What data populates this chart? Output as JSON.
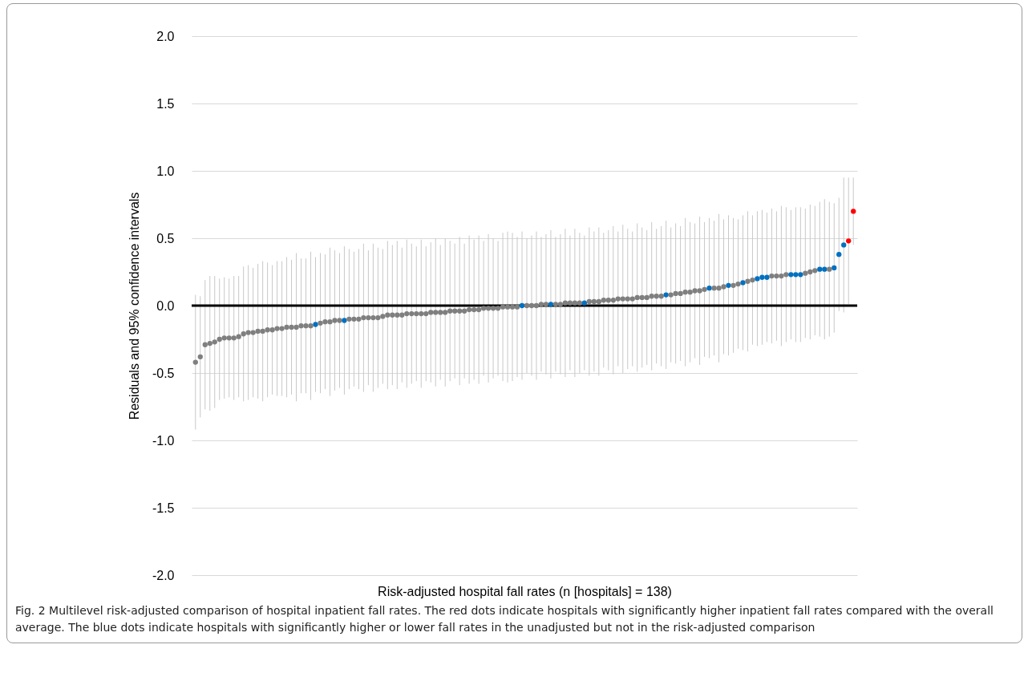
{
  "chart_data": {
    "type": "scatter",
    "xlabel": "Risk-adjusted hospital fall rates (n [hospitals] = 138)",
    "ylabel": "Residuals and 95% confidence intervals",
    "categories": [
      null,
      null,
      null,
      null,
      null,
      null,
      null,
      null,
      null,
      null,
      null,
      null,
      null,
      null,
      null,
      null,
      null,
      null,
      null,
      null,
      null,
      null,
      null,
      null,
      null,
      null,
      null,
      null,
      null,
      null,
      null,
      null,
      null,
      null,
      null,
      null,
      null,
      null,
      null,
      null,
      null,
      null,
      null,
      null,
      null,
      null,
      null,
      null,
      null,
      null,
      null,
      null,
      null,
      null,
      null,
      null,
      null,
      null,
      null,
      null,
      null,
      null,
      null,
      null,
      null,
      null,
      null,
      null,
      null,
      null,
      null,
      null,
      null,
      null,
      null,
      null,
      null,
      null,
      null,
      null,
      null,
      null,
      null,
      null,
      null,
      null,
      null,
      null,
      null,
      null,
      null,
      null,
      null,
      null,
      null,
      null,
      null,
      null,
      null,
      null,
      null,
      null,
      null,
      null,
      null,
      null,
      null,
      null,
      null,
      null,
      null,
      null,
      null,
      null,
      null,
      null,
      null,
      null,
      null,
      null,
      null,
      null,
      null,
      null,
      null,
      null,
      null,
      null,
      null,
      null,
      null,
      null,
      null,
      null,
      null,
      null,
      null,
      null
    ],
    "values": [
      -0.42,
      -0.38,
      -0.29,
      -0.28,
      -0.27,
      -0.25,
      -0.24,
      -0.24,
      -0.24,
      -0.23,
      -0.21,
      -0.2,
      -0.2,
      -0.19,
      -0.19,
      -0.18,
      -0.18,
      -0.17,
      -0.17,
      -0.16,
      -0.16,
      -0.16,
      -0.15,
      -0.15,
      -0.15,
      -0.14,
      -0.13,
      -0.12,
      -0.12,
      -0.11,
      -0.11,
      -0.11,
      -0.1,
      -0.1,
      -0.1,
      -0.09,
      -0.09,
      -0.09,
      -0.09,
      -0.08,
      -0.07,
      -0.07,
      -0.07,
      -0.07,
      -0.06,
      -0.06,
      -0.06,
      -0.06,
      -0.06,
      -0.05,
      -0.05,
      -0.05,
      -0.05,
      -0.04,
      -0.04,
      -0.04,
      -0.04,
      -0.03,
      -0.03,
      -0.03,
      -0.02,
      -0.02,
      -0.02,
      -0.02,
      -0.01,
      -0.01,
      -0.01,
      -0.01,
      0.0,
      0.0,
      0.0,
      0.0,
      0.01,
      0.01,
      0.01,
      0.01,
      0.01,
      0.02,
      0.02,
      0.02,
      0.02,
      0.02,
      0.03,
      0.03,
      0.03,
      0.04,
      0.04,
      0.04,
      0.05,
      0.05,
      0.05,
      0.05,
      0.06,
      0.06,
      0.06,
      0.07,
      0.07,
      0.07,
      0.08,
      0.08,
      0.09,
      0.09,
      0.1,
      0.1,
      0.11,
      0.11,
      0.12,
      0.13,
      0.13,
      0.13,
      0.14,
      0.15,
      0.15,
      0.16,
      0.17,
      0.18,
      0.19,
      0.2,
      0.21,
      0.21,
      0.22,
      0.22,
      0.22,
      0.23,
      0.23,
      0.23,
      0.23,
      0.24,
      0.25,
      0.26,
      0.27,
      0.27,
      0.27,
      0.28,
      0.38,
      0.45,
      0.48,
      0.7
    ],
    "errors": [
      0.5,
      0.45,
      0.48,
      0.5,
      0.49,
      0.45,
      0.45,
      0.44,
      0.46,
      0.45,
      0.5,
      0.5,
      0.48,
      0.5,
      0.52,
      0.5,
      0.48,
      0.5,
      0.5,
      0.52,
      0.5,
      0.55,
      0.5,
      0.5,
      0.55,
      0.5,
      0.52,
      0.5,
      0.55,
      0.52,
      0.5,
      0.55,
      0.52,
      0.5,
      0.52,
      0.55,
      0.5,
      0.55,
      0.52,
      0.5,
      0.55,
      0.52,
      0.55,
      0.5,
      0.55,
      0.52,
      0.5,
      0.55,
      0.5,
      0.52,
      0.55,
      0.5,
      0.55,
      0.52,
      0.5,
      0.55,
      0.5,
      0.55,
      0.52,
      0.55,
      0.5,
      0.55,
      0.52,
      0.5,
      0.55,
      0.56,
      0.55,
      0.52,
      0.55,
      0.5,
      0.52,
      0.55,
      0.5,
      0.52,
      0.55,
      0.5,
      0.52,
      0.55,
      0.5,
      0.55,
      0.52,
      0.5,
      0.55,
      0.52,
      0.55,
      0.5,
      0.52,
      0.55,
      0.5,
      0.55,
      0.52,
      0.5,
      0.55,
      0.52,
      0.5,
      0.55,
      0.5,
      0.52,
      0.55,
      0.5,
      0.52,
      0.5,
      0.55,
      0.52,
      0.5,
      0.55,
      0.5,
      0.52,
      0.5,
      0.55,
      0.5,
      0.52,
      0.5,
      0.48,
      0.5,
      0.52,
      0.48,
      0.5,
      0.5,
      0.48,
      0.5,
      0.48,
      0.52,
      0.5,
      0.48,
      0.5,
      0.5,
      0.48,
      0.5,
      0.48,
      0.5,
      0.52,
      0.5,
      0.48,
      0.42,
      0.5,
      0.47,
      0.25
    ],
    "colors": [
      "#7f7f7f",
      "#7f7f7f",
      "#7f7f7f",
      "#7f7f7f",
      "#7f7f7f",
      "#7f7f7f",
      "#7f7f7f",
      "#7f7f7f",
      "#7f7f7f",
      "#7f7f7f",
      "#7f7f7f",
      "#7f7f7f",
      "#7f7f7f",
      "#7f7f7f",
      "#7f7f7f",
      "#7f7f7f",
      "#7f7f7f",
      "#7f7f7f",
      "#7f7f7f",
      "#7f7f7f",
      "#7f7f7f",
      "#7f7f7f",
      "#7f7f7f",
      "#7f7f7f",
      "#7f7f7f",
      "#0070c0",
      "#7f7f7f",
      "#7f7f7f",
      "#7f7f7f",
      "#7f7f7f",
      "#7f7f7f",
      "#0070c0",
      "#7f7f7f",
      "#7f7f7f",
      "#7f7f7f",
      "#7f7f7f",
      "#7f7f7f",
      "#7f7f7f",
      "#7f7f7f",
      "#7f7f7f",
      "#7f7f7f",
      "#7f7f7f",
      "#7f7f7f",
      "#7f7f7f",
      "#7f7f7f",
      "#7f7f7f",
      "#7f7f7f",
      "#7f7f7f",
      "#7f7f7f",
      "#7f7f7f",
      "#7f7f7f",
      "#7f7f7f",
      "#7f7f7f",
      "#7f7f7f",
      "#7f7f7f",
      "#7f7f7f",
      "#7f7f7f",
      "#7f7f7f",
      "#7f7f7f",
      "#7f7f7f",
      "#7f7f7f",
      "#7f7f7f",
      "#7f7f7f",
      "#7f7f7f",
      "#7f7f7f",
      "#7f7f7f",
      "#7f7f7f",
      "#7f7f7f",
      "#0070c0",
      "#7f7f7f",
      "#7f7f7f",
      "#7f7f7f",
      "#7f7f7f",
      "#7f7f7f",
      "#0070c0",
      "#7f7f7f",
      "#7f7f7f",
      "#7f7f7f",
      "#7f7f7f",
      "#7f7f7f",
      "#7f7f7f",
      "#0070c0",
      "#7f7f7f",
      "#7f7f7f",
      "#7f7f7f",
      "#7f7f7f",
      "#7f7f7f",
      "#7f7f7f",
      "#7f7f7f",
      "#7f7f7f",
      "#7f7f7f",
      "#7f7f7f",
      "#7f7f7f",
      "#7f7f7f",
      "#7f7f7f",
      "#7f7f7f",
      "#7f7f7f",
      "#7f7f7f",
      "#0070c0",
      "#7f7f7f",
      "#7f7f7f",
      "#7f7f7f",
      "#7f7f7f",
      "#7f7f7f",
      "#7f7f7f",
      "#7f7f7f",
      "#7f7f7f",
      "#0070c0",
      "#7f7f7f",
      "#7f7f7f",
      "#7f7f7f",
      "#0070c0",
      "#7f7f7f",
      "#7f7f7f",
      "#0070c0",
      "#7f7f7f",
      "#7f7f7f",
      "#0070c0",
      "#0070c0",
      "#0070c0",
      "#7f7f7f",
      "#7f7f7f",
      "#7f7f7f",
      "#7f7f7f",
      "#0070c0",
      "#0070c0",
      "#0070c0",
      "#7f7f7f",
      "#7f7f7f",
      "#7f7f7f",
      "#0070c0",
      "#0070c0",
      "#7f7f7f",
      "#0070c0",
      "#0070c0",
      "#0070c0",
      "#ff0000",
      "#ff0000"
    ],
    "ylim": [
      -2.0,
      2.0
    ],
    "yticks": [
      {
        "value": -2,
        "label": "-2.0"
      },
      {
        "value": -1.5,
        "label": "-1.5"
      },
      {
        "value": -1,
        "label": "-1.0"
      },
      {
        "value": -0.5,
        "label": "-0.5"
      },
      {
        "value": 0,
        "label": "0.0"
      },
      {
        "value": 0.5,
        "label": "0.5"
      },
      {
        "value": 1,
        "label": "1.0"
      },
      {
        "value": 1.5,
        "label": "1.5"
      },
      {
        "value": 2,
        "label": "2.0"
      }
    ],
    "ref_lines": [
      {
        "axis": "y",
        "value": 0,
        "color": "#000000"
      }
    ],
    "grid": "y",
    "tick_labels": "y",
    "marker": "circle",
    "annotations": [
      "Fig. 2 Multilevel risk-adjusted comparison of hospital inpatient fall rates. The red dots indicate hospitals with significantly higher inpatient fall rates compared with the overall average. The blue dots indicate hospitals with significantly higher or lower fall rates in the unadjusted but not in the risk-adjusted comparison"
    ]
  }
}
